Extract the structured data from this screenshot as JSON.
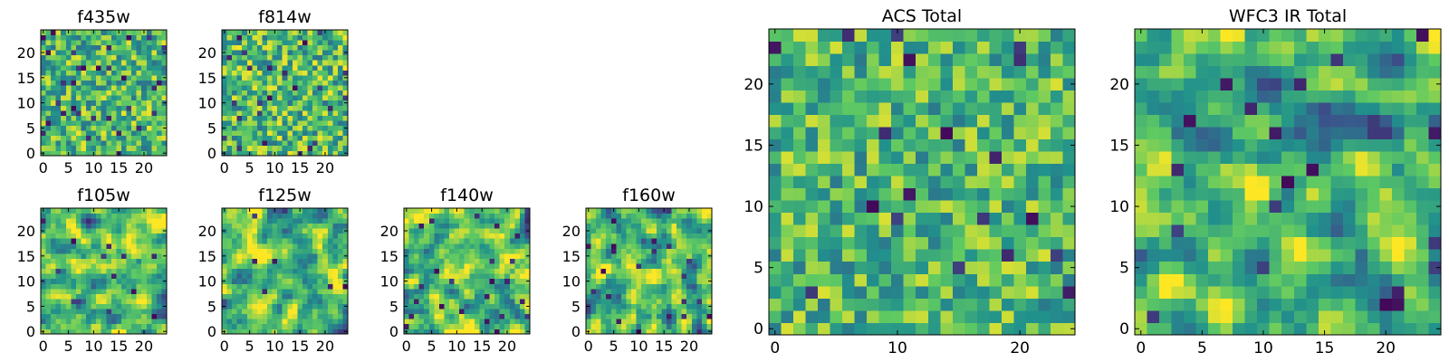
{
  "figure": {
    "colormap": "viridis",
    "colors": {
      "background": "#ffffff",
      "axis": "#000000",
      "viridis_stops": [
        "#440154",
        "#3b528b",
        "#21918c",
        "#5ec962",
        "#fde725"
      ]
    }
  },
  "chart_data": [
    {
      "type": "heatmap",
      "title": "f435w",
      "grid": [
        25,
        25
      ],
      "xlim": [
        -0.5,
        24.5
      ],
      "ylim": [
        -0.5,
        24.5
      ],
      "xticks": [
        "0",
        "5",
        "10",
        "15",
        "20"
      ],
      "yticks": [
        "0",
        "5",
        "10",
        "15",
        "20"
      ],
      "value_range": [
        0,
        1
      ],
      "seed": 11,
      "mean": 0.66,
      "spread": 0.17,
      "smoothing": 0,
      "dark_fraction": 0.05
    },
    {
      "type": "heatmap",
      "title": "f814w",
      "grid": [
        25,
        25
      ],
      "xlim": [
        -0.5,
        24.5
      ],
      "ylim": [
        -0.5,
        24.5
      ],
      "xticks": [
        "0",
        "5",
        "10",
        "15",
        "20"
      ],
      "yticks": [
        "0",
        "5",
        "10",
        "15",
        "20"
      ],
      "value_range": [
        0,
        1
      ],
      "seed": 23,
      "mean": 0.68,
      "spread": 0.18,
      "smoothing": 0,
      "dark_fraction": 0.04
    },
    {
      "type": "heatmap",
      "title": "f105w",
      "grid": [
        25,
        25
      ],
      "xlim": [
        -0.5,
        24.5
      ],
      "ylim": [
        -0.5,
        24.5
      ],
      "xticks": [
        "0",
        "5",
        "10",
        "15",
        "20"
      ],
      "yticks": [
        "0",
        "5",
        "10",
        "15",
        "20"
      ],
      "value_range": [
        0,
        1
      ],
      "seed": 37,
      "mean": 0.7,
      "spread": 0.17,
      "smoothing": 1,
      "dark_fraction": 0.015
    },
    {
      "type": "heatmap",
      "title": "f125w",
      "grid": [
        25,
        25
      ],
      "xlim": [
        -0.5,
        24.5
      ],
      "ylim": [
        -0.5,
        24.5
      ],
      "xticks": [
        "0",
        "5",
        "10",
        "15",
        "20"
      ],
      "yticks": [
        "0",
        "5",
        "10",
        "15",
        "20"
      ],
      "value_range": [
        0,
        1
      ],
      "seed": 41,
      "mean": 0.68,
      "spread": 0.18,
      "smoothing": 1,
      "dark_fraction": 0.02
    },
    {
      "type": "heatmap",
      "title": "f140w",
      "grid": [
        25,
        25
      ],
      "xlim": [
        -0.5,
        24.5
      ],
      "ylim": [
        -0.5,
        24.5
      ],
      "xticks": [
        "0",
        "5",
        "10",
        "15",
        "20"
      ],
      "yticks": [
        "0",
        "5",
        "10",
        "15",
        "20"
      ],
      "value_range": [
        0,
        1
      ],
      "seed": 53,
      "mean": 0.7,
      "spread": 0.18,
      "smoothing": 1,
      "dark_fraction": 0.025
    },
    {
      "type": "heatmap",
      "title": "f160w",
      "grid": [
        25,
        25
      ],
      "xlim": [
        -0.5,
        24.5
      ],
      "ylim": [
        -0.5,
        24.5
      ],
      "xticks": [
        "0",
        "5",
        "10",
        "15",
        "20"
      ],
      "yticks": [
        "0",
        "5",
        "10",
        "15",
        "20"
      ],
      "value_range": [
        0,
        1
      ],
      "seed": 67,
      "mean": 0.68,
      "spread": 0.18,
      "smoothing": 1,
      "dark_fraction": 0.025
    },
    {
      "type": "heatmap",
      "title": "ACS Total",
      "grid": [
        25,
        25
      ],
      "xlim": [
        -0.5,
        24.5
      ],
      "ylim": [
        -0.5,
        24.5
      ],
      "xticks": [
        "0",
        "10",
        "20"
      ],
      "yticks": [
        "0",
        "5",
        "10",
        "15",
        "20"
      ],
      "value_range": [
        0,
        1
      ],
      "seed": 79,
      "mean": 0.67,
      "spread": 0.16,
      "smoothing": 0,
      "dark_fraction": 0.025
    },
    {
      "type": "heatmap",
      "title": "WFC3 IR Total",
      "grid": [
        25,
        25
      ],
      "xlim": [
        -0.5,
        24.5
      ],
      "ylim": [
        -0.5,
        24.5
      ],
      "xticks": [
        "0",
        "5",
        "10",
        "15",
        "20"
      ],
      "yticks": [
        "0",
        "5",
        "10",
        "15",
        "20"
      ],
      "value_range": [
        0,
        1
      ],
      "seed": 97,
      "mean": 0.64,
      "spread": 0.17,
      "smoothing": 1,
      "dark_fraction": 0.03
    }
  ]
}
